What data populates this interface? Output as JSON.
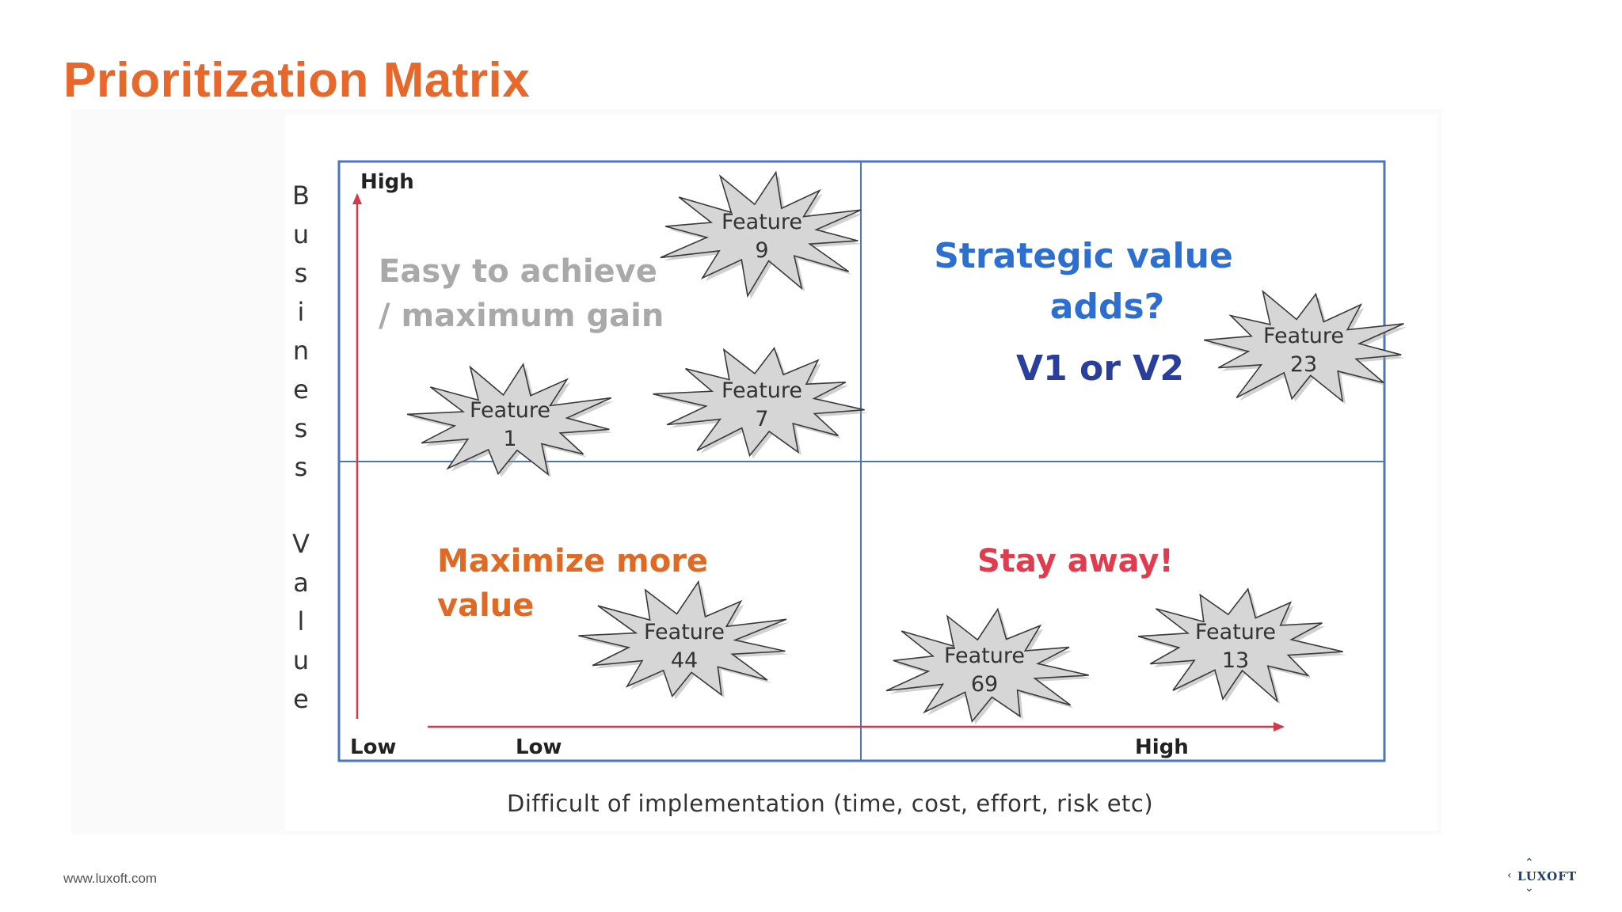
{
  "slide": {
    "title": "Prioritization Matrix",
    "footer_url": "www.luxoft.com",
    "logo_text": "LUXOFT"
  },
  "diagram": {
    "y_axis_title": "Business Value",
    "x_axis_title": "Difficult of implementation  (time, cost, effort, risk etc)",
    "y_high": "High",
    "y_low": "Low",
    "x_low": "Low",
    "x_high": "High",
    "quadrants": {
      "top_left": [
        "Easy to achieve",
        "/ maximum gain"
      ],
      "top_right": [
        "Strategic value",
        "adds?",
        "V1 or V2"
      ],
      "bottom_left": [
        "Maximize more",
        "value"
      ],
      "bottom_right": [
        "Stay away!"
      ]
    },
    "features": [
      {
        "label": "Feature",
        "number": "9"
      },
      {
        "label": "Feature",
        "number": "1"
      },
      {
        "label": "Feature",
        "number": "7"
      },
      {
        "label": "Feature",
        "number": "23"
      },
      {
        "label": "Feature",
        "number": "44"
      },
      {
        "label": "Feature",
        "number": "69"
      },
      {
        "label": "Feature",
        "number": "13"
      }
    ],
    "colors": {
      "title_orange": "#e8672b",
      "grid_blue": "#4a74c4",
      "axis_red": "#d2394b",
      "strategic_blue": "#2d6fd0",
      "strategic_navy": "#2a3f9c",
      "maximize_orange": "#e06a24",
      "stay_away_red": "#e23b4e",
      "easy_gray": "#a9a9a9",
      "burst_fill": "#d6d6d6"
    }
  }
}
